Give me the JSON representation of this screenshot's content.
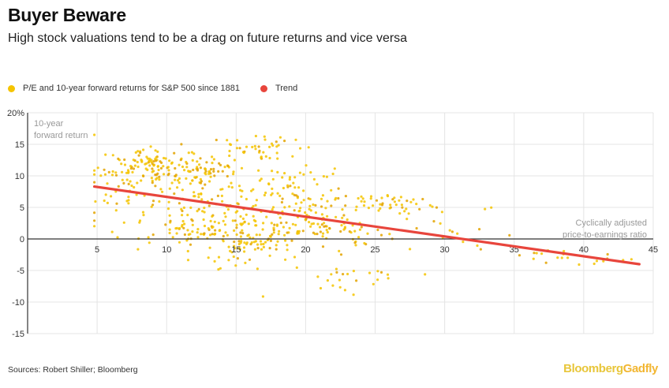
{
  "header": {
    "title": "Buyer Beware",
    "subtitle": "High stock valuations tend to be a drag on future returns and vice versa"
  },
  "legend": {
    "scatter_label": "P/E and 10-year forward returns for S&P 500 since 1881",
    "trend_label": "Trend"
  },
  "footer": {
    "source": "Sources: Robert Shiller; Bloomberg",
    "brand_part1": "Bloomberg",
    "brand_part2": "Gadfly"
  },
  "colors": {
    "scatter": "#f5c400",
    "scatter_dense": "#e3a300",
    "trend": "#e8453c",
    "grid": "#e4e4e4",
    "axis": "#333333",
    "label": "#999999"
  },
  "chart_data": {
    "type": "scatter",
    "title": "Buyer Beware",
    "subtitle": "High stock valuations tend to be a drag on future returns and vice versa",
    "xlabel_lines": [
      "Cyclically adjusted",
      "price-to-earnings ratio"
    ],
    "ylabel_lines": [
      "10-year",
      "forward return"
    ],
    "xlim": [
      0,
      45
    ],
    "ylim": [
      -15,
      20
    ],
    "x_ticks": [
      5,
      10,
      15,
      20,
      25,
      30,
      35,
      40,
      45
    ],
    "y_ticks": [
      20,
      15,
      10,
      5,
      0,
      -5,
      -10,
      -15
    ],
    "y_tick_labels": [
      "20%",
      "15",
      "10",
      "5",
      "0",
      "-5",
      "-10",
      "-15"
    ],
    "trend": {
      "x": [
        4.8,
        44
      ],
      "y": [
        8.3,
        -4.0
      ]
    },
    "clusters": [
      {
        "cx": 9.5,
        "cy": 11.5,
        "sx": 1.8,
        "sy": 1.4,
        "n": 110
      },
      {
        "cx": 12.5,
        "cy": 10.5,
        "sx": 1.6,
        "sy": 1.6,
        "n": 70
      },
      {
        "cx": 6.5,
        "cy": 9.0,
        "sx": 1.2,
        "sy": 3.0,
        "n": 40
      },
      {
        "cx": 12.5,
        "cy": 2.5,
        "sx": 2.5,
        "sy": 2.5,
        "n": 130
      },
      {
        "cx": 16.0,
        "cy": 0.5,
        "sx": 1.8,
        "sy": 2.5,
        "n": 110
      },
      {
        "cx": 16.5,
        "cy": 14.5,
        "sx": 1.5,
        "sy": 1.2,
        "n": 40
      },
      {
        "cx": 18.5,
        "cy": 8.0,
        "sx": 2.0,
        "sy": 2.5,
        "n": 70
      },
      {
        "cx": 20.0,
        "cy": 3.0,
        "sx": 2.0,
        "sy": 2.2,
        "n": 70
      },
      {
        "cx": 23.0,
        "cy": 1.5,
        "sx": 1.5,
        "sy": 1.5,
        "n": 30
      },
      {
        "cx": 26.0,
        "cy": 5.5,
        "sx": 1.3,
        "sy": 1.0,
        "n": 45
      },
      {
        "cx": 23.5,
        "cy": -6.0,
        "sx": 2.5,
        "sy": 1.5,
        "n": 25
      },
      {
        "cx": 30.5,
        "cy": 1.0,
        "sx": 2.0,
        "sy": 2.5,
        "n": 18
      },
      {
        "cx": 38.5,
        "cy": -2.5,
        "sx": 2.5,
        "sy": 0.8,
        "n": 22
      }
    ]
  }
}
